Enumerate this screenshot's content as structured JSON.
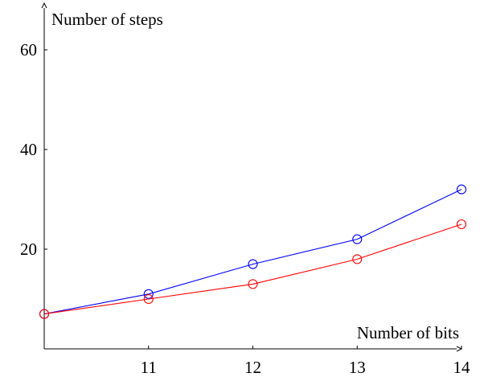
{
  "chart_data": {
    "type": "line",
    "title": "",
    "xlabel": "Number of bits",
    "ylabel": "Number of steps",
    "x": [
      10,
      11,
      12,
      13,
      14
    ],
    "x_ticks": [
      11,
      12,
      13,
      14
    ],
    "y_ticks": [
      20,
      40,
      60
    ],
    "xlim": [
      10,
      14
    ],
    "ylim": [
      0,
      65
    ],
    "grid": false,
    "legend": "none",
    "series": [
      {
        "color": "#0000ff",
        "marker": "circle",
        "values": [
          7,
          11,
          17,
          22,
          32
        ]
      },
      {
        "color": "#ff0000",
        "marker": "circle",
        "values": [
          7,
          10,
          13,
          18,
          25
        ]
      }
    ]
  }
}
